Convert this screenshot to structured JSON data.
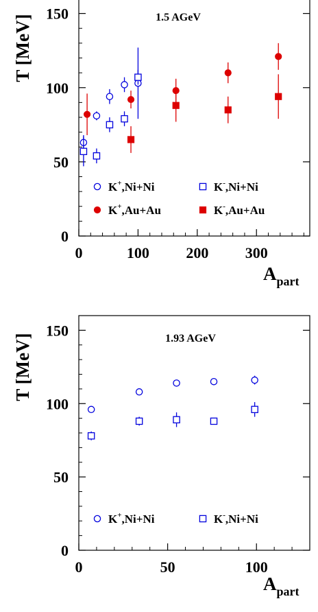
{
  "chart_data": [
    {
      "type": "scatter",
      "annotation": "1.5 AGeV",
      "ylabel": "T [MeV]",
      "xlabel_main": "A",
      "xlabel_sub": "part",
      "xlim": [
        0,
        390
      ],
      "ylim": [
        0,
        160
      ],
      "xticks": [
        0,
        100,
        200,
        300
      ],
      "yticks": [
        0,
        50,
        100,
        150
      ],
      "series": [
        {
          "name_main": "K",
          "name_sup": "+",
          "name_rest": ",Ni+Ni",
          "marker": "open-circle",
          "color": "#0000dd",
          "points": [
            {
              "x": 8,
              "y": 63,
              "err": 5
            },
            {
              "x": 30,
              "y": 81,
              "err": 3
            },
            {
              "x": 52,
              "y": 94,
              "err": 5
            },
            {
              "x": 77,
              "y": 102,
              "err": 5
            },
            {
              "x": 100,
              "y": 103,
              "err": 24
            }
          ]
        },
        {
          "name_main": "K",
          "name_sup": "-",
          "name_rest": ",Ni+Ni",
          "marker": "open-square",
          "color": "#0000dd",
          "points": [
            {
              "x": 8,
              "y": 57,
              "err": 10
            },
            {
              "x": 30,
              "y": 54,
              "err": 5
            },
            {
              "x": 52,
              "y": 75,
              "err": 5
            },
            {
              "x": 77,
              "y": 79,
              "err": 5
            },
            {
              "x": 100,
              "y": 107,
              "err": 5
            }
          ]
        },
        {
          "name_main": "K",
          "name_sup": "+",
          "name_rest": ",Au+Au",
          "marker": "filled-circle",
          "color": "#dd0000",
          "points": [
            {
              "x": 14,
              "y": 82,
              "err": 14
            },
            {
              "x": 88,
              "y": 92,
              "err": 6
            },
            {
              "x": 164,
              "y": 98,
              "err": 8
            },
            {
              "x": 252,
              "y": 110,
              "err": 7
            },
            {
              "x": 337,
              "y": 121,
              "err": 9
            }
          ]
        },
        {
          "name_main": "K",
          "name_sup": "-",
          "name_rest": ",Au+Au",
          "marker": "filled-square",
          "color": "#dd0000",
          "points": [
            {
              "x": 88,
              "y": 65,
              "err": 9
            },
            {
              "x": 164,
              "y": 88,
              "err": 11
            },
            {
              "x": 252,
              "y": 85,
              "err": 9
            },
            {
              "x": 337,
              "y": 94,
              "err": 15
            }
          ]
        }
      ]
    },
    {
      "type": "scatter",
      "annotation": "1.93 AGeV",
      "ylabel": "T [MeV]",
      "xlabel_main": "A",
      "xlabel_sub": "part",
      "xlim": [
        0,
        130
      ],
      "ylim": [
        0,
        160
      ],
      "xticks": [
        0,
        50,
        100
      ],
      "yticks": [
        0,
        50,
        100,
        150
      ],
      "series": [
        {
          "name_main": "K",
          "name_sup": "+",
          "name_rest": ",Ni+Ni",
          "marker": "open-circle",
          "color": "#0000dd",
          "points": [
            {
              "x": 7,
              "y": 96,
              "err": 1
            },
            {
              "x": 34,
              "y": 108,
              "err": 1
            },
            {
              "x": 55,
              "y": 114,
              "err": 1
            },
            {
              "x": 76,
              "y": 115,
              "err": 1
            },
            {
              "x": 99,
              "y": 116,
              "err": 3
            }
          ]
        },
        {
          "name_main": "K",
          "name_sup": "-",
          "name_rest": ",Ni+Ni",
          "marker": "open-square",
          "color": "#0000dd",
          "points": [
            {
              "x": 7,
              "y": 78,
              "err": 3
            },
            {
              "x": 34,
              "y": 88,
              "err": 3
            },
            {
              "x": 55,
              "y": 89,
              "err": 5
            },
            {
              "x": 76,
              "y": 88,
              "err": 2
            },
            {
              "x": 99,
              "y": 96,
              "err": 5
            }
          ]
        }
      ]
    }
  ]
}
